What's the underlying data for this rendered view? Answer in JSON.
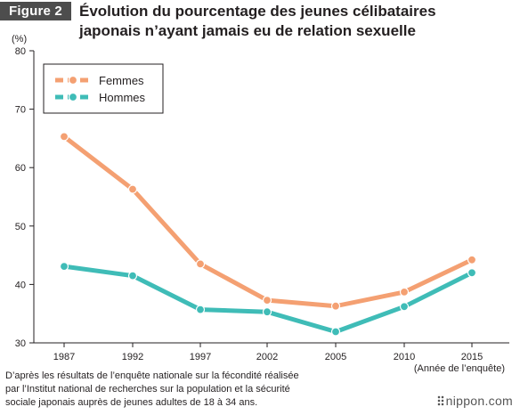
{
  "figure_label": "Figure 2",
  "title_line1": "Évolution du pourcentage des jeunes célibataires",
  "title_line2": "japonais n’ayant jamais eu de relation sexuelle",
  "source_note": [
    "D’après les résultats de l’enquête nationale sur la fécondité réalisée",
    "par l’Institut national de recherches sur la population et la sécurité",
    "sociale japonais auprès de jeunes adultes de 18 à 34 ans."
  ],
  "brand": "nippon.com",
  "chart_data": {
    "type": "line",
    "x": [
      "1987",
      "1992",
      "1997",
      "2002",
      "2005",
      "2010",
      "2015"
    ],
    "series": [
      {
        "name": "Femmes",
        "color": "#f4a072",
        "values": [
          65.3,
          56.3,
          43.5,
          37.3,
          36.3,
          38.7,
          44.2
        ]
      },
      {
        "name": "Hommes",
        "color": "#3fbcb7",
        "values": [
          43.1,
          41.5,
          35.7,
          35.3,
          31.9,
          36.2,
          42.0
        ]
      }
    ],
    "ylabel": "(%)",
    "xlabel": "(Année de l’enquête)",
    "ylim": [
      30,
      80
    ],
    "yticks": [
      "30",
      "40",
      "50",
      "60",
      "70",
      "80"
    ],
    "grid": false,
    "legend": "top-left"
  }
}
